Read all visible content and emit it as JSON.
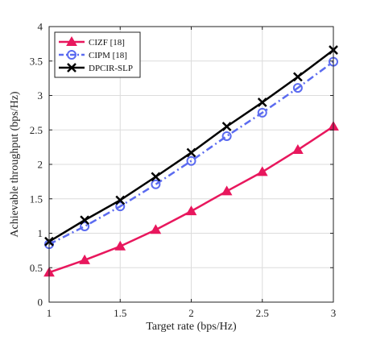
{
  "chart_data": {
    "type": "line",
    "title": "",
    "xlabel": "Target rate (bps/Hz)",
    "ylabel": "Achievable throughput (bps/Hz)",
    "xlim": [
      1,
      3
    ],
    "ylim": [
      0,
      4
    ],
    "xticks": [
      "1",
      "1.5",
      "2",
      "2.5",
      "3"
    ],
    "yticks": [
      "0",
      "0.5",
      "1",
      "1.5",
      "2",
      "2.5",
      "3",
      "3.5",
      "4"
    ],
    "grid": true,
    "legend_position": "top-left",
    "x": [
      1,
      1.25,
      1.5,
      1.75,
      2,
      2.25,
      2.5,
      2.75,
      3
    ],
    "series": [
      {
        "name": "CIZF [18]",
        "color": "#e8175d",
        "marker": "triangle",
        "dash": "solid",
        "values": [
          0.43,
          0.61,
          0.81,
          1.05,
          1.32,
          1.61,
          1.89,
          2.21,
          2.55
        ]
      },
      {
        "name": "CIPM [18]",
        "color": "#5b6bf0",
        "marker": "circle",
        "dash": "dashdot",
        "values": [
          0.84,
          1.1,
          1.39,
          1.71,
          2.05,
          2.41,
          2.75,
          3.11,
          3.49
        ]
      },
      {
        "name": "DPCIR-SLP",
        "color": "#000000",
        "marker": "x",
        "dash": "solid",
        "values": [
          0.88,
          1.19,
          1.48,
          1.82,
          2.17,
          2.55,
          2.9,
          3.27,
          3.66
        ]
      }
    ]
  }
}
